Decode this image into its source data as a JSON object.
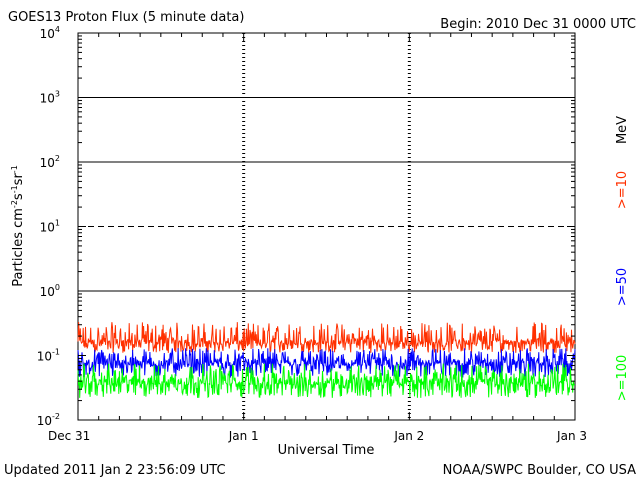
{
  "chart_data": {
    "type": "line",
    "title": "GOES13 Proton Flux (5 minute data)",
    "begin_label": "Begin: 2010 Dec 31 0000 UTC",
    "xlabel": "Universal Time",
    "ylabel_base": "Particles cm",
    "ylabel_parts": [
      "-2",
      "s",
      "-1",
      "sr",
      "-1"
    ],
    "x_ticks": [
      "Dec 31",
      "Jan 1",
      "Jan 2",
      "Jan 3"
    ],
    "x_range_hours": [
      0,
      72
    ],
    "y_scale": "log",
    "ylim": [
      0.01,
      10000
    ],
    "y_ticks": [
      {
        "base": "10",
        "exp": "-2"
      },
      {
        "base": "10",
        "exp": "-1"
      },
      {
        "base": "10",
        "exp": "0"
      },
      {
        "base": "10",
        "exp": "1"
      },
      {
        "base": "10",
        "exp": "2"
      },
      {
        "base": "10",
        "exp": "3"
      },
      {
        "base": "10",
        "exp": "4"
      }
    ],
    "threshold_lines": [
      1,
      10,
      100,
      1000
    ],
    "dashed_line": 10,
    "series": [
      {
        "name": ">=10",
        "color": "#ff3000",
        "typical": 0.15,
        "low": 0.11,
        "high": 0.33
      },
      {
        "name": ">=50",
        "color": "#0000ff",
        "typical": 0.07,
        "low": 0.045,
        "high": 0.13
      },
      {
        "name": ">=100",
        "color": "#00ff00",
        "typical": 0.035,
        "low": 0.022,
        "high": 0.075
      }
    ],
    "unit_label": "MeV"
  },
  "footer": {
    "updated": "Updated 2011 Jan  2 23:56:09 UTC",
    "source": "NOAA/SWPC Boulder, CO USA"
  }
}
